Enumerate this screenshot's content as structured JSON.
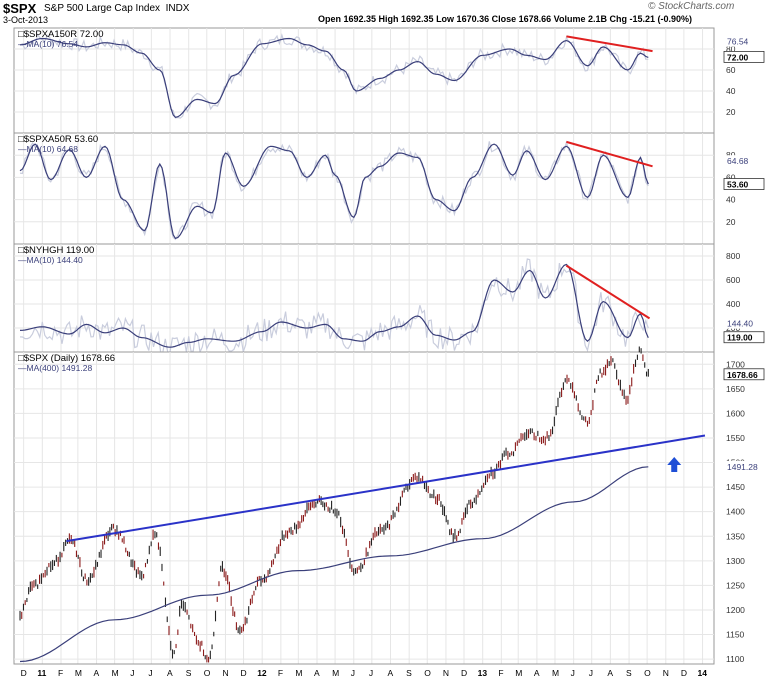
{
  "header": {
    "symbol": "$SPX",
    "name": "S&P 500 Large Cap Index",
    "exchange": "INDX",
    "date": "3-Oct-2013",
    "ohlc": "Open 1692.35  High 1692.35  Low 1670.36  Close 1678.66  Volume 2.1B  Chg -15.21 (-0.90%)",
    "brand": "© StockCharts.com"
  },
  "colors": {
    "price": "#8b1a1a",
    "ma_line": "#3a3f7a",
    "raw_line": "#c9cddd",
    "trend_red": "#e02020",
    "trend_blue": "#2a32c8",
    "arrow": "#1f4fd6",
    "grid": "#e6e6e6"
  },
  "chart_data": [
    {
      "type": "line",
      "title": "$SPXA150R 72.00",
      "series": [
        {
          "name": "$SPXA150R",
          "last_label": "72.00"
        },
        {
          "name": "MA(10) 76.54",
          "last_label": "76.54"
        }
      ],
      "y_ticks": [
        "80",
        "60",
        "40",
        "20"
      ],
      "ylim": [
        0,
        100
      ],
      "x": [
        "2010-11-25",
        "2011-01-01",
        "2011-02-15",
        "2011-03-15",
        "2011-04-15",
        "2011-05-15",
        "2011-06-15",
        "2011-07-15",
        "2011-08-10",
        "2011-09-15",
        "2011-10-15",
        "2011-11-15",
        "2012-01-01",
        "2012-02-15",
        "2012-03-15",
        "2012-04-15",
        "2012-05-15",
        "2012-06-05",
        "2012-07-15",
        "2012-08-15",
        "2012-09-15",
        "2012-10-15",
        "2012-11-15",
        "2013-01-01",
        "2013-02-15",
        "2013-03-15",
        "2013-04-15",
        "2013-05-20",
        "2013-06-24",
        "2013-07-20",
        "2013-08-30",
        "2013-09-20",
        "2013-10-03"
      ],
      "values": [
        84,
        90,
        85,
        82,
        86,
        84,
        76,
        60,
        15,
        32,
        28,
        55,
        85,
        90,
        84,
        78,
        60,
        40,
        52,
        60,
        68,
        56,
        50,
        74,
        80,
        74,
        70,
        88,
        64,
        82,
        60,
        76,
        72
      ],
      "annotations": [
        {
          "type": "trendline",
          "color": "red",
          "from": [
            "2013-05-20",
            92
          ],
          "to": [
            "2013-10-10",
            78
          ]
        }
      ]
    },
    {
      "type": "line",
      "title": "$SPXA50R 53.60",
      "series": [
        {
          "name": "$SPXA50R",
          "last_label": "53.60"
        },
        {
          "name": "MA(10) 64.68",
          "last_label": "64.68"
        }
      ],
      "y_ticks": [
        "80",
        "60",
        "40",
        "20",
        "0"
      ],
      "ylim": [
        0,
        100
      ],
      "x": [
        "2010-11-25",
        "2010-12-20",
        "2011-01-15",
        "2011-02-15",
        "2011-03-15",
        "2011-04-15",
        "2011-05-15",
        "2011-06-20",
        "2011-07-15",
        "2011-08-10",
        "2011-09-15",
        "2011-10-10",
        "2011-11-01",
        "2011-12-01",
        "2012-01-15",
        "2012-02-15",
        "2012-03-15",
        "2012-04-15",
        "2012-05-01",
        "2012-06-01",
        "2012-06-20",
        "2012-07-15",
        "2012-08-15",
        "2012-09-15",
        "2012-10-15",
        "2012-11-15",
        "2012-12-15",
        "2013-01-20",
        "2013-02-20",
        "2013-03-15",
        "2013-04-15",
        "2013-05-20",
        "2013-06-24",
        "2013-07-20",
        "2013-08-30",
        "2013-09-20",
        "2013-10-03"
      ],
      "values": [
        66,
        90,
        58,
        85,
        60,
        88,
        40,
        12,
        72,
        5,
        34,
        28,
        82,
        52,
        88,
        84,
        60,
        80,
        62,
        24,
        60,
        70,
        82,
        78,
        40,
        30,
        60,
        90,
        62,
        84,
        58,
        88,
        42,
        80,
        42,
        78,
        54
      ],
      "annotations": [
        {
          "type": "trendline",
          "color": "red",
          "from": [
            "2013-05-20",
            92
          ],
          "to": [
            "2013-10-10",
            70
          ]
        }
      ]
    },
    {
      "type": "line",
      "title": "$NYHGH 119.00",
      "series": [
        {
          "name": "$NYHGH",
          "last_label": "119.00"
        },
        {
          "name": "MA(10) 144.40",
          "last_label": "144.40"
        }
      ],
      "y_ticks": [
        "800",
        "600",
        "400",
        "200"
      ],
      "ylim": [
        0,
        900
      ],
      "x": [
        "2010-11-25",
        "2011-01-01",
        "2011-02-15",
        "2011-03-15",
        "2011-04-15",
        "2011-05-15",
        "2011-06-15",
        "2011-08-01",
        "2011-09-01",
        "2011-10-01",
        "2011-11-15",
        "2012-01-01",
        "2012-02-01",
        "2012-03-15",
        "2012-04-15",
        "2012-05-15",
        "2012-06-15",
        "2012-07-15",
        "2012-08-15",
        "2012-09-15",
        "2012-10-15",
        "2012-11-15",
        "2012-12-15",
        "2013-01-20",
        "2013-02-20",
        "2013-03-20",
        "2013-04-15",
        "2013-05-20",
        "2013-06-24",
        "2013-07-20",
        "2013-08-30",
        "2013-09-20",
        "2013-10-03"
      ],
      "values": [
        180,
        210,
        150,
        230,
        160,
        200,
        120,
        40,
        80,
        110,
        90,
        170,
        250,
        200,
        230,
        110,
        90,
        170,
        210,
        300,
        140,
        100,
        170,
        600,
        500,
        680,
        450,
        730,
        90,
        420,
        120,
        320,
        119
      ],
      "annotations": [
        {
          "type": "trendline",
          "color": "red",
          "from": [
            "2013-05-20",
            720
          ],
          "to": [
            "2013-10-05",
            280
          ]
        }
      ]
    },
    {
      "type": "line",
      "title": "$SPX (Daily) 1678.66",
      "series": [
        {
          "name": "$SPX (Daily)",
          "last_label": "1678.66"
        },
        {
          "name": "MA(400) 1491.28",
          "last_label": "1491.28"
        }
      ],
      "y_ticks": [
        "1700",
        "1650",
        "1600",
        "1550",
        "1500",
        "1450",
        "1400",
        "1350",
        "1300",
        "1250",
        "1200",
        "1150",
        "1100"
      ],
      "ylim": [
        1090,
        1725
      ],
      "x": [
        "2010-11-25",
        "2010-12-15",
        "2011-01-15",
        "2011-02-18",
        "2011-03-16",
        "2011-04-29",
        "2011-06-15",
        "2011-07-07",
        "2011-08-08",
        "2011-08-20",
        "2011-09-20",
        "2011-10-04",
        "2011-10-27",
        "2011-11-25",
        "2011-12-30",
        "2012-02-15",
        "2012-04-02",
        "2012-05-01",
        "2012-06-04",
        "2012-07-15",
        "2012-09-14",
        "2012-10-15",
        "2012-11-16",
        "2012-12-15",
        "2013-01-15",
        "2013-02-15",
        "2013-03-15",
        "2013-04-18",
        "2013-05-21",
        "2013-06-24",
        "2013-07-15",
        "2013-08-02",
        "2013-08-27",
        "2013-09-18",
        "2013-10-03"
      ],
      "values": [
        1190,
        1245,
        1290,
        1340,
        1260,
        1365,
        1270,
        1355,
        1110,
        1210,
        1130,
        1100,
        1285,
        1160,
        1260,
        1360,
        1420,
        1405,
        1280,
        1360,
        1470,
        1430,
        1350,
        1420,
        1480,
        1520,
        1560,
        1550,
        1670,
        1580,
        1680,
        1710,
        1630,
        1725,
        1678.66
      ],
      "ma_x": [
        "2010-11-25",
        "2011-05-01",
        "2011-10-01",
        "2012-03-01",
        "2012-08-01",
        "2013-01-01",
        "2013-06-01",
        "2013-10-03"
      ],
      "ma_values": [
        1095,
        1180,
        1230,
        1280,
        1310,
        1345,
        1420,
        1491.28
      ],
      "x_ticks": [
        "D",
        "11",
        "F",
        "M",
        "A",
        "M",
        "J",
        "J",
        "A",
        "S",
        "O",
        "N",
        "D",
        "12",
        "F",
        "M",
        "A",
        "M",
        "J",
        "J",
        "A",
        "S",
        "O",
        "N",
        "D",
        "13",
        "F",
        "M",
        "A",
        "M",
        "J",
        "J",
        "A",
        "S",
        "O",
        "N",
        "D",
        "14"
      ],
      "annotations": [
        {
          "type": "trendline",
          "color": "blue",
          "from": [
            "2011-02-10",
            1340
          ],
          "to": [
            "2014-01-05",
            1555
          ]
        },
        {
          "type": "arrow",
          "direction": "up",
          "color": "blue",
          "at": [
            "2013-11-15",
            1495
          ]
        }
      ]
    }
  ]
}
